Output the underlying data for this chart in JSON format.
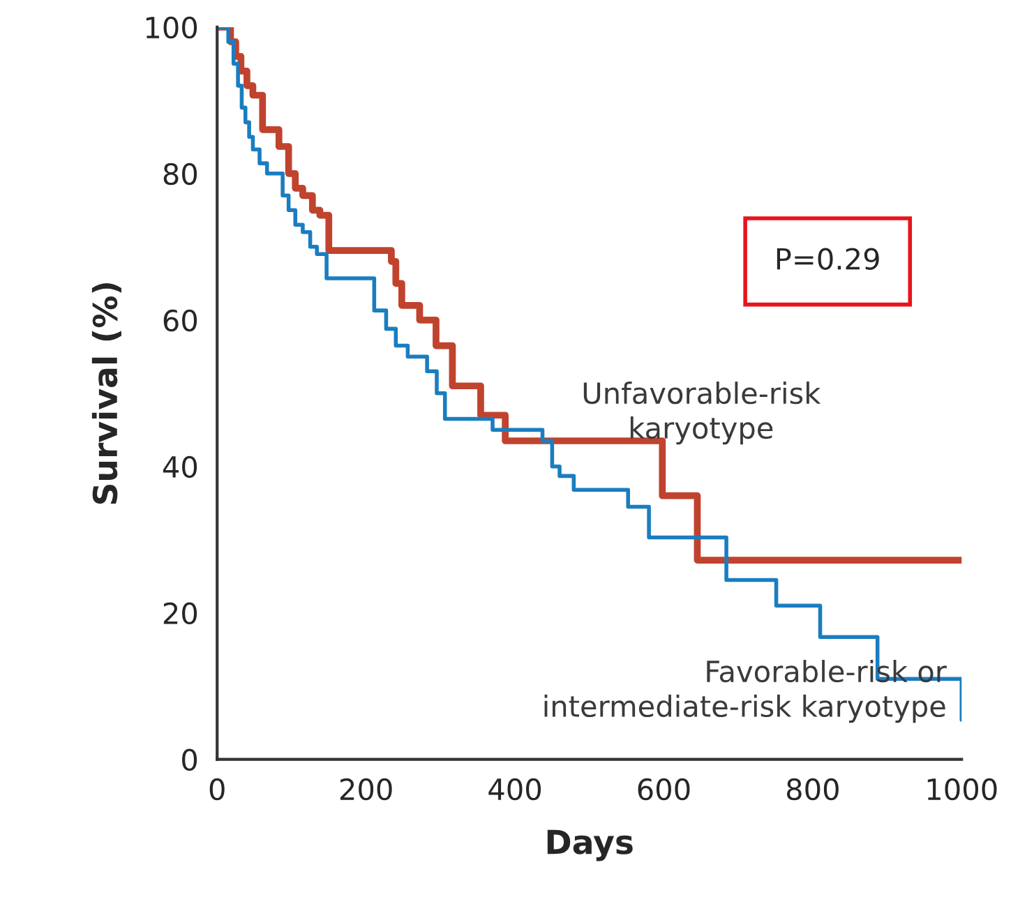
{
  "chart_data": {
    "type": "step",
    "xlabel": "Days",
    "ylabel": "Survival (%)",
    "xlim": [
      0,
      1000
    ],
    "ylim": [
      0,
      100
    ],
    "xticks": [
      0,
      200,
      400,
      600,
      800,
      1000
    ],
    "yticks": [
      0,
      20,
      40,
      60,
      80,
      100
    ],
    "grid": false,
    "legend": false,
    "annotations": [
      "P=0.29"
    ],
    "series": [
      {
        "name": "Unfavorable-risk\nkaryotype",
        "color": "#c0432e",
        "x": [
          0,
          18,
          25,
          32,
          40,
          48,
          61,
          83,
          96,
          105,
          115,
          128,
          138,
          150,
          234,
          240,
          248,
          272,
          294,
          316,
          354,
          387,
          598,
          645,
          1000
        ],
        "values": [
          100,
          98,
          96,
          94,
          92,
          90.7,
          86,
          83.7,
          80,
          78,
          77,
          75,
          74.3,
          69.5,
          68,
          65,
          62,
          60,
          56.5,
          51,
          47,
          43.5,
          36,
          27.2,
          27.2
        ]
      },
      {
        "name": "Favorable-risk or\nintermediate-risk karyotype",
        "color": "#1a7dc0",
        "x": [
          0,
          15,
          22,
          28,
          33,
          38,
          43,
          48,
          57,
          67,
          88,
          96,
          105,
          115,
          125,
          134,
          147,
          211,
          227,
          240,
          256,
          282,
          295,
          306,
          370,
          437,
          450,
          460,
          479,
          552,
          580,
          684,
          751,
          810,
          887,
          1000
        ],
        "values": [
          100,
          98,
          95,
          92,
          89,
          87,
          85,
          83.3,
          81.4,
          80,
          77,
          75,
          73,
          72,
          70,
          69,
          65.7,
          61.3,
          58.8,
          56.5,
          55,
          53,
          50,
          46.5,
          45,
          43.5,
          40,
          38.7,
          36.8,
          34.5,
          30.3,
          24.5,
          21,
          16.7,
          11,
          5.4
        ]
      }
    ]
  }
}
